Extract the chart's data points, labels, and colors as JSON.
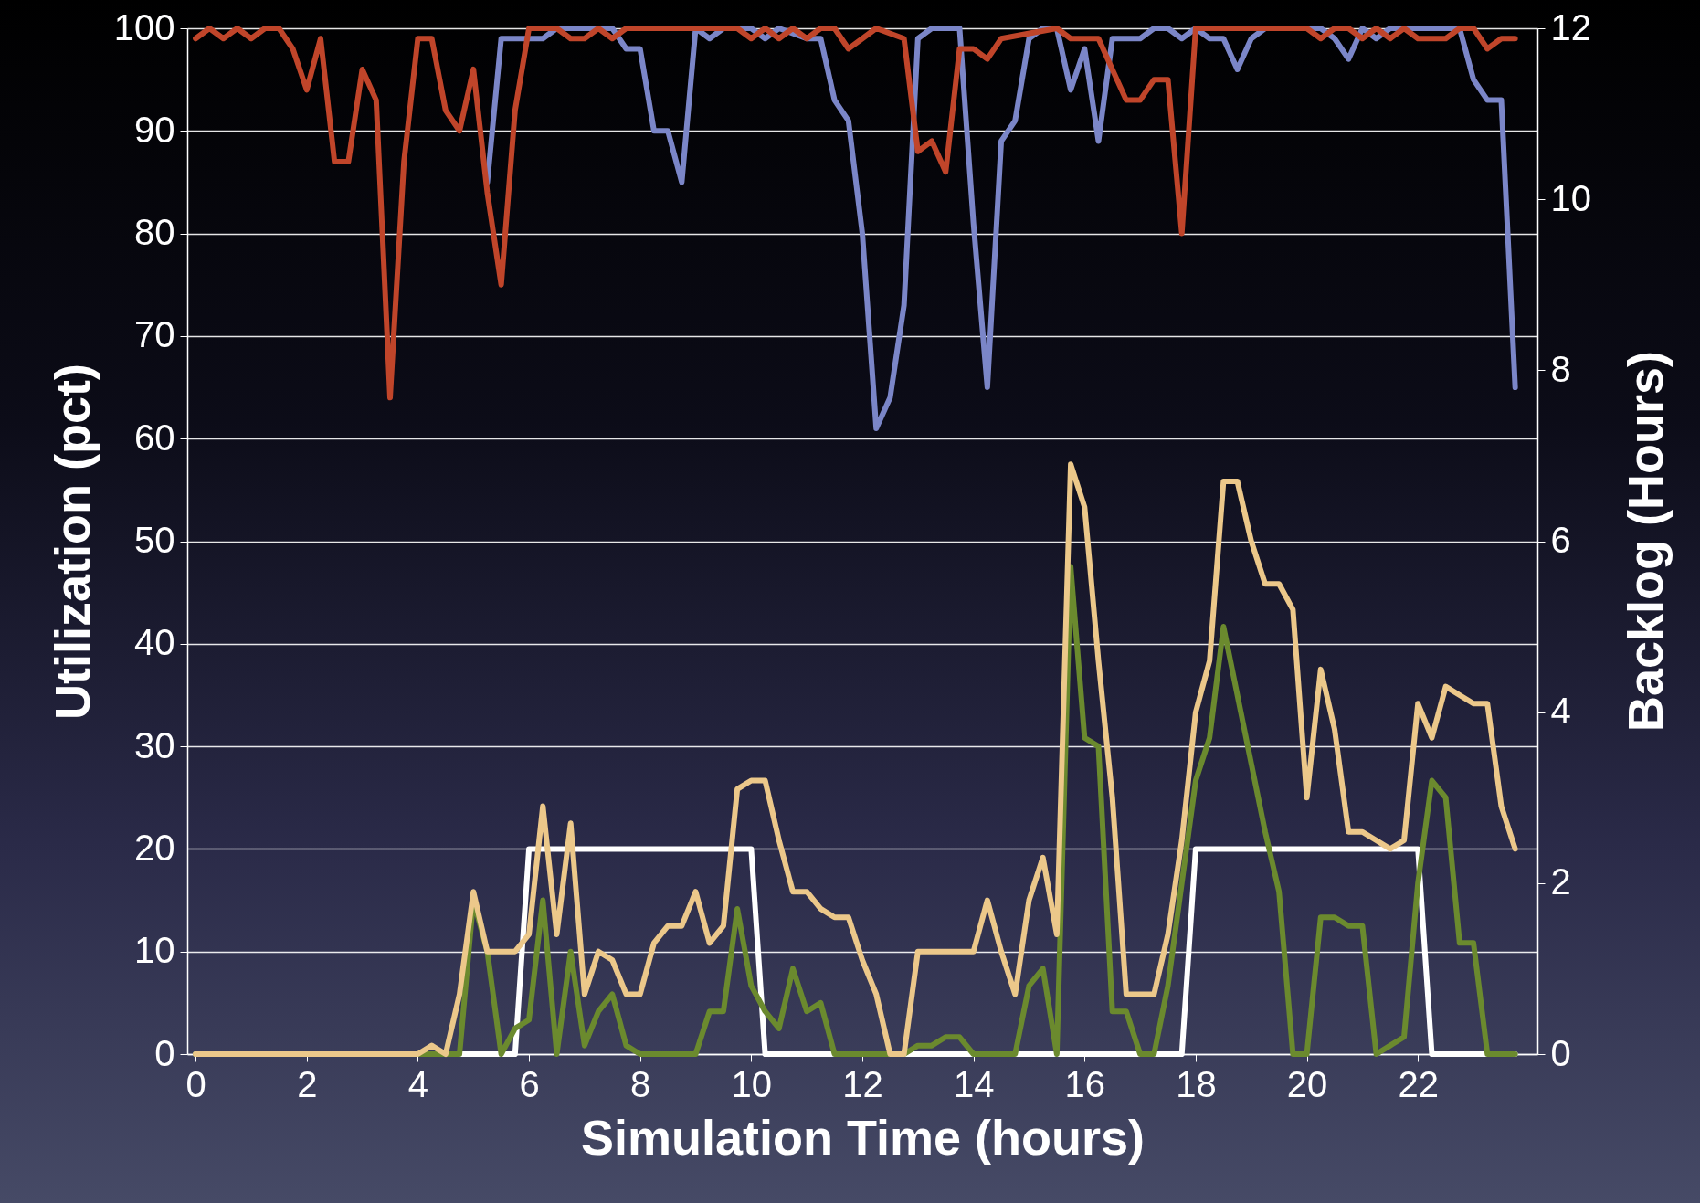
{
  "chart_data": {
    "type": "line",
    "xlabel": "Simulation Time (hours)",
    "ylabel": "Utilization (pct)",
    "y2label": "Backlog (Hours)",
    "xlim": [
      -0.15,
      24.15
    ],
    "xticks": [
      0,
      2,
      4,
      6,
      8,
      10,
      12,
      14,
      16,
      18,
      20,
      22
    ],
    "ylim": [
      0,
      100
    ],
    "yticks": [
      0,
      10,
      20,
      30,
      40,
      50,
      60,
      70,
      80,
      90,
      100
    ],
    "y2lim": [
      0,
      12
    ],
    "y2ticks": [
      0,
      2,
      4,
      6,
      8,
      10,
      12
    ],
    "grid": "y",
    "legend": false,
    "marker": "none",
    "line_style": "solid",
    "series": [
      {
        "color": "#7b86c8",
        "x": [
          5.25,
          5.5,
          6,
          6.25,
          6.5,
          7.25,
          7.5,
          7.75,
          8,
          8.25,
          8.5,
          8.75,
          9,
          9.25,
          9.5,
          10,
          10.25,
          10.5,
          11,
          11.25,
          11.5,
          11.75,
          12,
          12.25,
          12.5,
          12.75,
          13,
          13.25,
          13.75,
          14,
          14.25,
          14.5,
          14.75,
          15,
          15.25,
          15.5,
          15.75,
          16,
          16.25,
          16.5,
          17,
          17.25,
          17.5,
          17.75,
          18,
          18.25,
          18.5,
          18.75,
          19,
          19.25,
          20.25,
          20.5,
          20.75,
          21,
          21.25,
          21.5,
          22.5,
          22.75,
          23,
          23.25,
          23.5,
          23.75
        ],
        "values": [
          85,
          99,
          99,
          99,
          100,
          100,
          100,
          98,
          98,
          90,
          90,
          85,
          100,
          99,
          100,
          100,
          99,
          100,
          99,
          99,
          93,
          91,
          80,
          61,
          64,
          73,
          99,
          100,
          100,
          81,
          65,
          89,
          91,
          99,
          100,
          100,
          94,
          98,
          89,
          99,
          99,
          100,
          100,
          99,
          100,
          99,
          99,
          96,
          99,
          100,
          100,
          99,
          97,
          100,
          99,
          100,
          100,
          100,
          95,
          93,
          93,
          65
        ]
      },
      {
        "color": "#c0452a",
        "x": [
          0,
          0.25,
          0.5,
          0.75,
          1,
          1.25,
          1.5,
          1.75,
          2,
          2.25,
          2.5,
          2.75,
          3,
          3.25,
          3.5,
          3.75,
          4,
          4.25,
          4.5,
          4.75,
          5,
          5.25,
          5.5,
          5.75,
          6,
          6.5,
          6.75,
          7,
          7.25,
          7.5,
          7.75,
          8,
          9.75,
          10,
          10.25,
          10.5,
          10.75,
          11,
          11.25,
          11.5,
          11.75,
          12,
          12.25,
          12.75,
          13,
          13.25,
          13.5,
          13.75,
          14,
          14.25,
          14.5,
          15.5,
          15.75,
          16.25,
          16.5,
          16.75,
          17,
          17.25,
          17.5,
          17.75,
          18,
          20,
          20.25,
          20.5,
          20.75,
          21,
          21.25,
          21.5,
          21.75,
          22,
          22.5,
          22.75,
          23,
          23.25,
          23.5,
          23.75
        ],
        "values": [
          99,
          100,
          99,
          100,
          99,
          100,
          100,
          98,
          94,
          99,
          87,
          87,
          96,
          93,
          64,
          87,
          99,
          99,
          92,
          90,
          96,
          84,
          75,
          92,
          100,
          100,
          99,
          99,
          100,
          99,
          100,
          100,
          100,
          99,
          100,
          99,
          100,
          99,
          100,
          100,
          98,
          99,
          100,
          99,
          88,
          89,
          86,
          98,
          98,
          97,
          99,
          100,
          99,
          99,
          96,
          93,
          93,
          95,
          95,
          80,
          100,
          100,
          99,
          100,
          100,
          99,
          100,
          99,
          100,
          99,
          99,
          100,
          100,
          98,
          99,
          99
        ]
      },
      {
        "color": "#ffffff",
        "x": [
          0,
          5.75,
          6,
          10,
          10.25,
          17.75,
          18,
          22,
          22.25,
          23.75
        ],
        "values": [
          0,
          0,
          20,
          20,
          0,
          0,
          20,
          20,
          0,
          0
        ]
      },
      {
        "color": "#6b8a2e",
        "axis": "y2",
        "x": [
          0,
          4.75,
          5,
          5.25,
          5.5,
          5.75,
          6,
          6.25,
          6.5,
          6.75,
          7,
          7.25,
          7.5,
          7.75,
          8,
          9,
          9.25,
          9.5,
          9.75,
          10,
          10.25,
          10.5,
          10.75,
          11,
          11.25,
          11.5,
          12.75,
          13,
          13.25,
          13.5,
          13.75,
          14,
          14.75,
          15,
          15.25,
          15.5,
          15.75,
          16,
          16.25,
          16.5,
          16.75,
          17,
          17.25,
          17.5,
          17.75,
          18,
          18.25,
          18.5,
          18.75,
          19,
          19.25,
          19.5,
          19.75,
          20,
          20.25,
          20.5,
          20.75,
          21,
          21.25,
          21.5,
          21.75,
          22,
          22.25,
          22.5,
          22.75,
          23,
          23.25,
          23.75
        ],
        "values": [
          0,
          0,
          1.8,
          1.2,
          0,
          0.3,
          0.4,
          1.8,
          0,
          1.2,
          0.1,
          0.5,
          0.7,
          0.1,
          0,
          0,
          0.5,
          0.5,
          1.7,
          0.8,
          0.5,
          0.3,
          1.0,
          0.5,
          0.6,
          0,
          0,
          0.1,
          0.1,
          0.2,
          0.2,
          0,
          0,
          0.8,
          1.0,
          0,
          5.7,
          3.7,
          3.6,
          0.5,
          0.5,
          0,
          0,
          0.8,
          2.0,
          3.2,
          3.7,
          5.0,
          4.2,
          3.4,
          2.6,
          1.9,
          0,
          0,
          1.6,
          1.6,
          1.5,
          1.5,
          0,
          0.1,
          0.2,
          2.0,
          3.2,
          3.0,
          1.3,
          1.3,
          0,
          0
        ]
      },
      {
        "color": "#ecc88a",
        "axis": "y2",
        "x": [
          0,
          4,
          4.25,
          4.5,
          4.75,
          5,
          5.25,
          5.5,
          5.75,
          6,
          6.25,
          6.5,
          6.75,
          7,
          7.25,
          7.5,
          7.75,
          8,
          8.25,
          8.5,
          8.75,
          9,
          9.25,
          9.5,
          9.75,
          10,
          10.25,
          10.5,
          10.75,
          11,
          11.25,
          11.5,
          11.75,
          12,
          12.25,
          12.5,
          12.75,
          13,
          14,
          14.25,
          14.5,
          14.75,
          15,
          15.25,
          15.5,
          15.75,
          16,
          16.25,
          16.5,
          16.75,
          17,
          17.25,
          17.5,
          17.75,
          18,
          18.25,
          18.5,
          18.75,
          19,
          19.25,
          19.5,
          19.75,
          20,
          20.25,
          20.5,
          20.75,
          21,
          21.25,
          21.5,
          21.75,
          22,
          22.25,
          22.5,
          22.75,
          23,
          23.25,
          23.5,
          23.75
        ],
        "values": [
          0,
          0,
          0.1,
          0,
          0.7,
          1.9,
          1.2,
          1.2,
          1.2,
          1.4,
          2.9,
          1.4,
          2.7,
          0.7,
          1.2,
          1.1,
          0.7,
          0.7,
          1.3,
          1.5,
          1.5,
          1.9,
          1.3,
          1.5,
          3.1,
          3.2,
          3.2,
          2.5,
          1.9,
          1.9,
          1.7,
          1.6,
          1.6,
          1.1,
          0.7,
          0,
          0,
          1.2,
          1.2,
          1.8,
          1.2,
          0.7,
          1.8,
          2.3,
          1.4,
          6.9,
          6.4,
          4.6,
          3.0,
          0.7,
          0.7,
          0.7,
          1.4,
          2.5,
          4.0,
          4.6,
          6.7,
          6.7,
          6.0,
          5.5,
          5.5,
          5.2,
          3.0,
          4.5,
          3.8,
          2.6,
          2.6,
          2.5,
          2.4,
          2.5,
          4.1,
          3.7,
          4.3,
          4.2,
          4.1,
          4.1,
          2.9,
          2.4
        ]
      }
    ]
  }
}
